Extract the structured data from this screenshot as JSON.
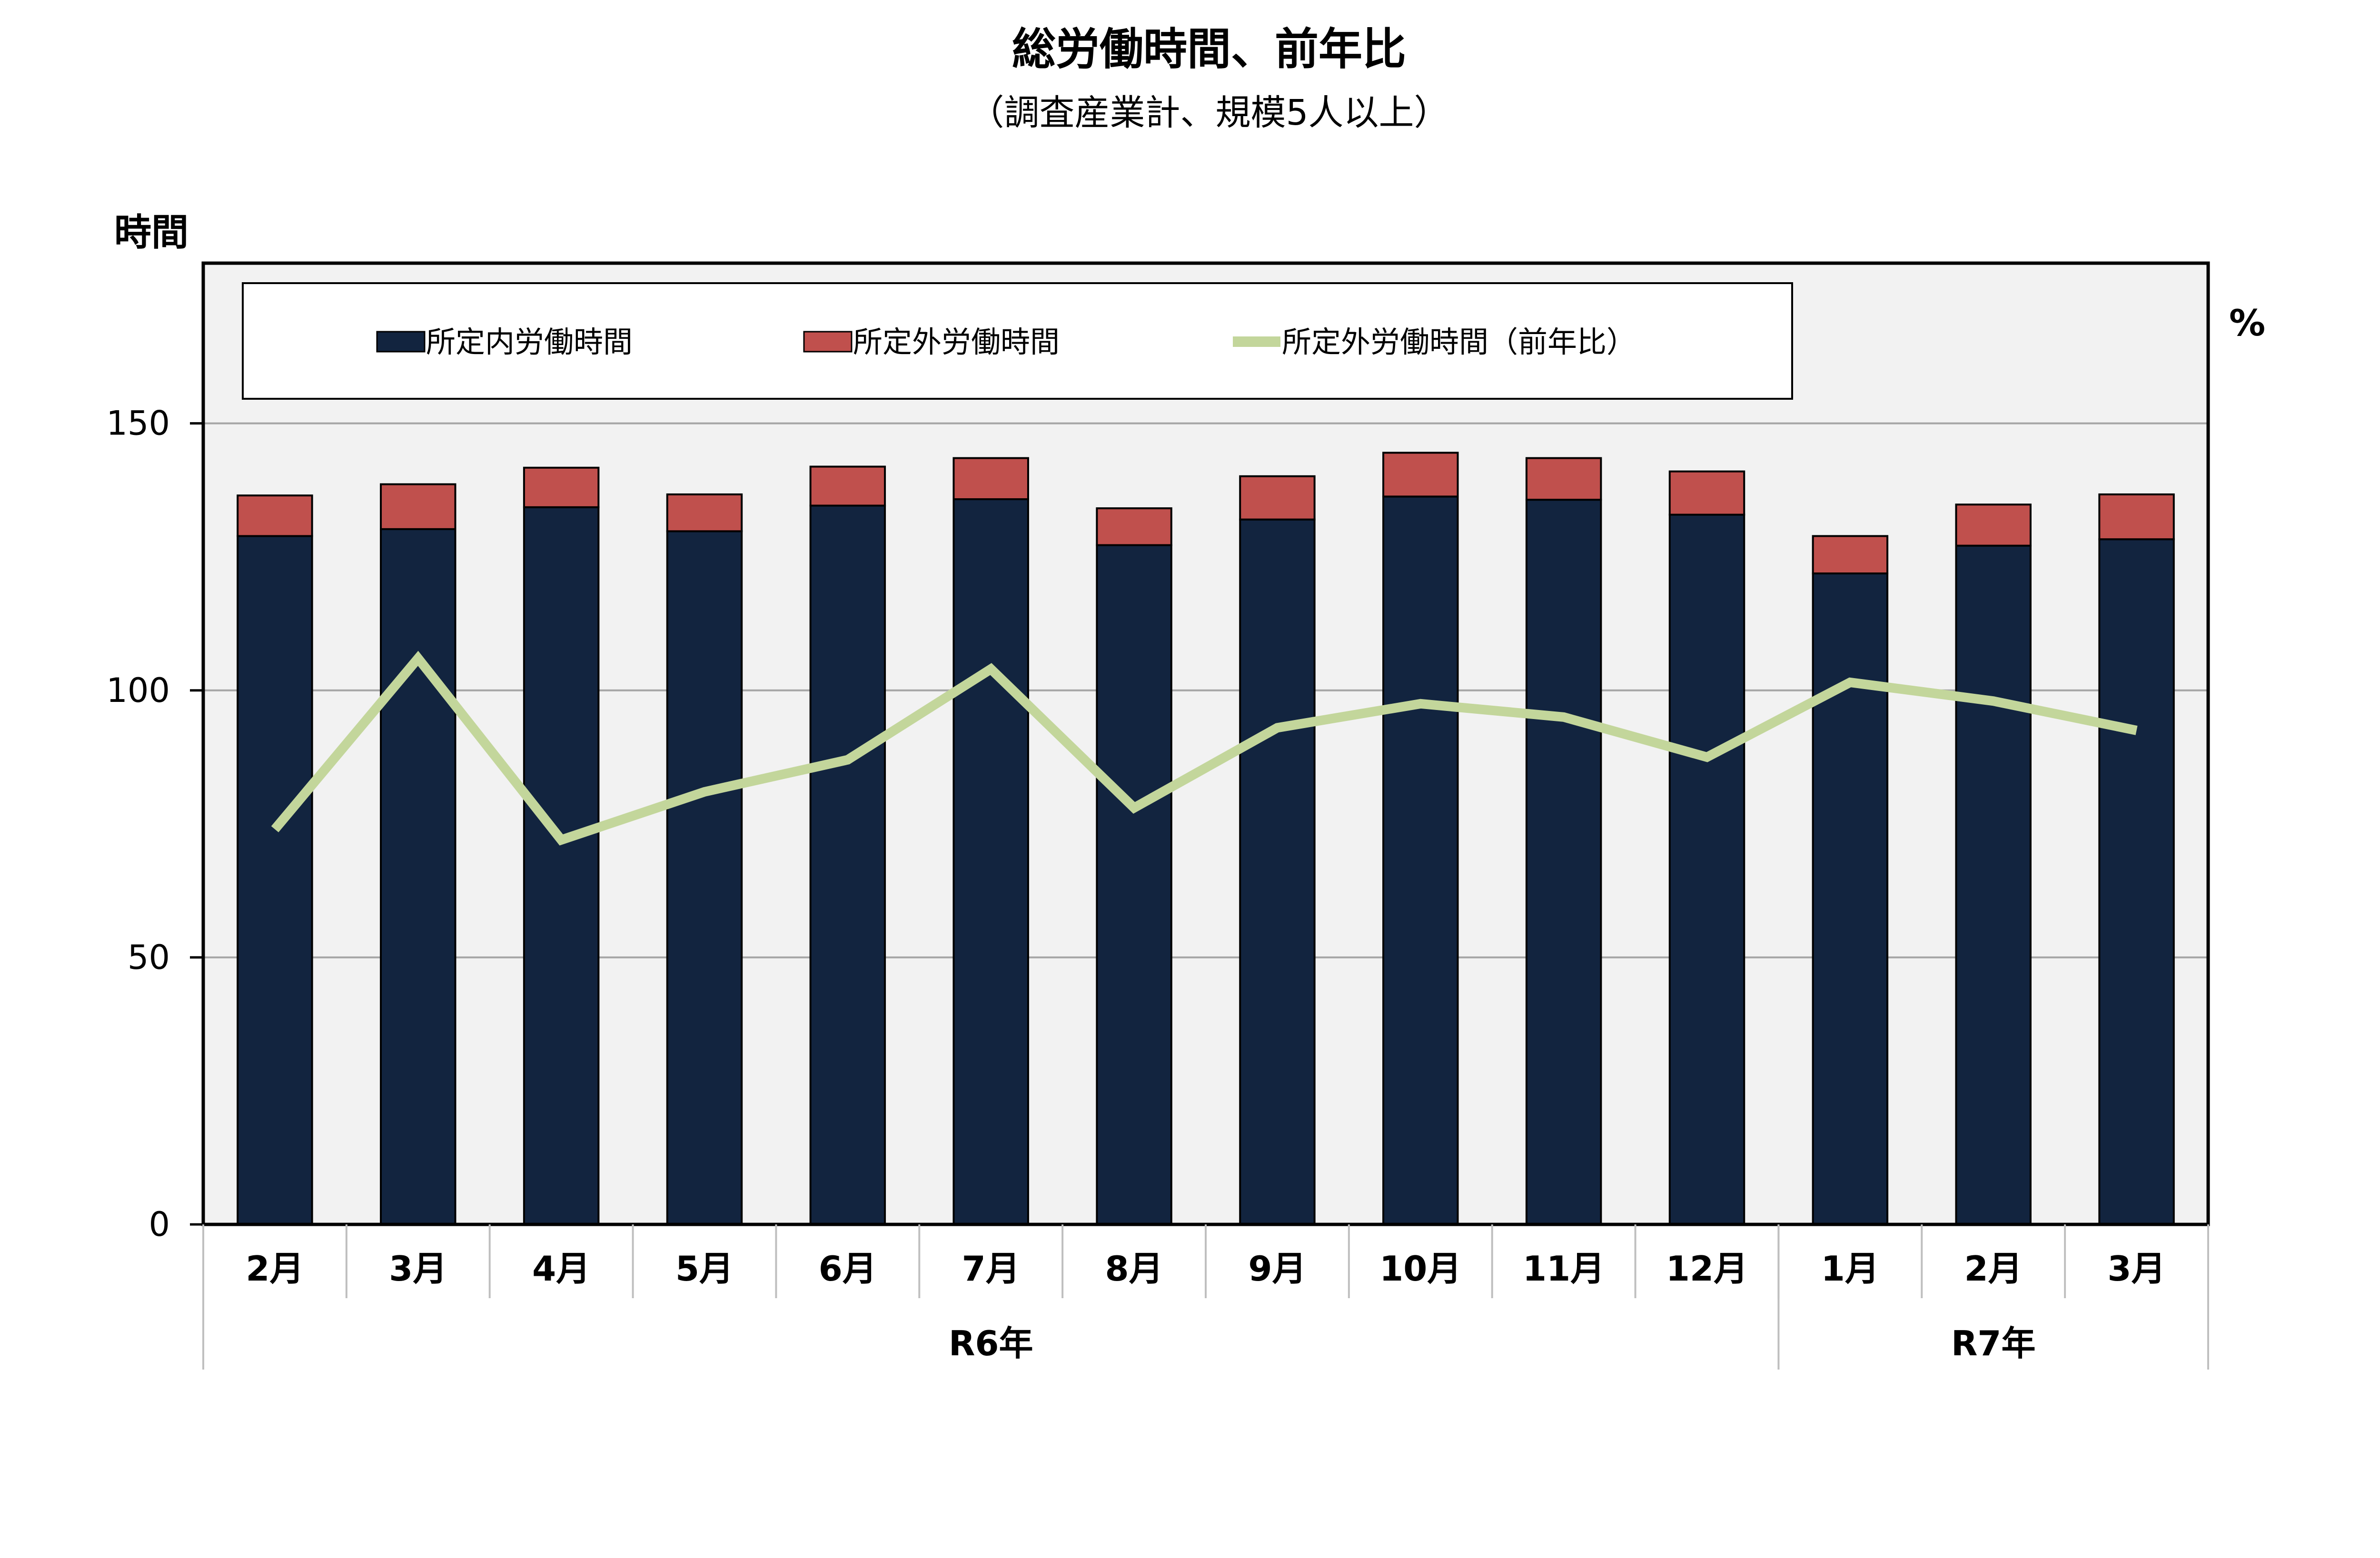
{
  "chart_data": {
    "type": "bar",
    "title": "総労働時間、前年比",
    "subtitle": "（調査産業計、規模5人以上）",
    "y_left_label": "時間",
    "y_right_label": "%",
    "ylim": [
      0,
      180
    ],
    "yticks": [
      0,
      50,
      100,
      150
    ],
    "grid": true,
    "stacked": true,
    "categories": [
      "2月",
      "3月",
      "4月",
      "5月",
      "6月",
      "7月",
      "8月",
      "9月",
      "10月",
      "11月",
      "12月",
      "1月",
      "2月",
      "3月"
    ],
    "year_groups": [
      {
        "label": "R6年",
        "count": 11
      },
      {
        "label": "R7年",
        "count": 3
      }
    ],
    "series": [
      {
        "name": "所定内労働時間",
        "type": "bar",
        "color": "#12243f",
        "values": [
          128.9,
          130.2,
          134.3,
          129.8,
          134.6,
          135.8,
          127.2,
          132.0,
          136.3,
          135.7,
          132.9,
          121.9,
          127.1,
          128.3
        ]
      },
      {
        "name": "所定外労働時間",
        "type": "bar",
        "color": "#c0504d",
        "values": [
          7.6,
          8.4,
          7.4,
          6.9,
          7.3,
          7.7,
          6.9,
          8.1,
          8.2,
          7.8,
          8.1,
          7.0,
          7.7,
          8.4
        ]
      },
      {
        "name": "所定外労働時間（前年比）",
        "type": "line",
        "color": "#c3d69b",
        "values": [
          74,
          106,
          72,
          81,
          87,
          104,
          78,
          93,
          97.5,
          95,
          87.5,
          101.5,
          98,
          92.5
        ]
      }
    ],
    "legend_position": "top"
  }
}
